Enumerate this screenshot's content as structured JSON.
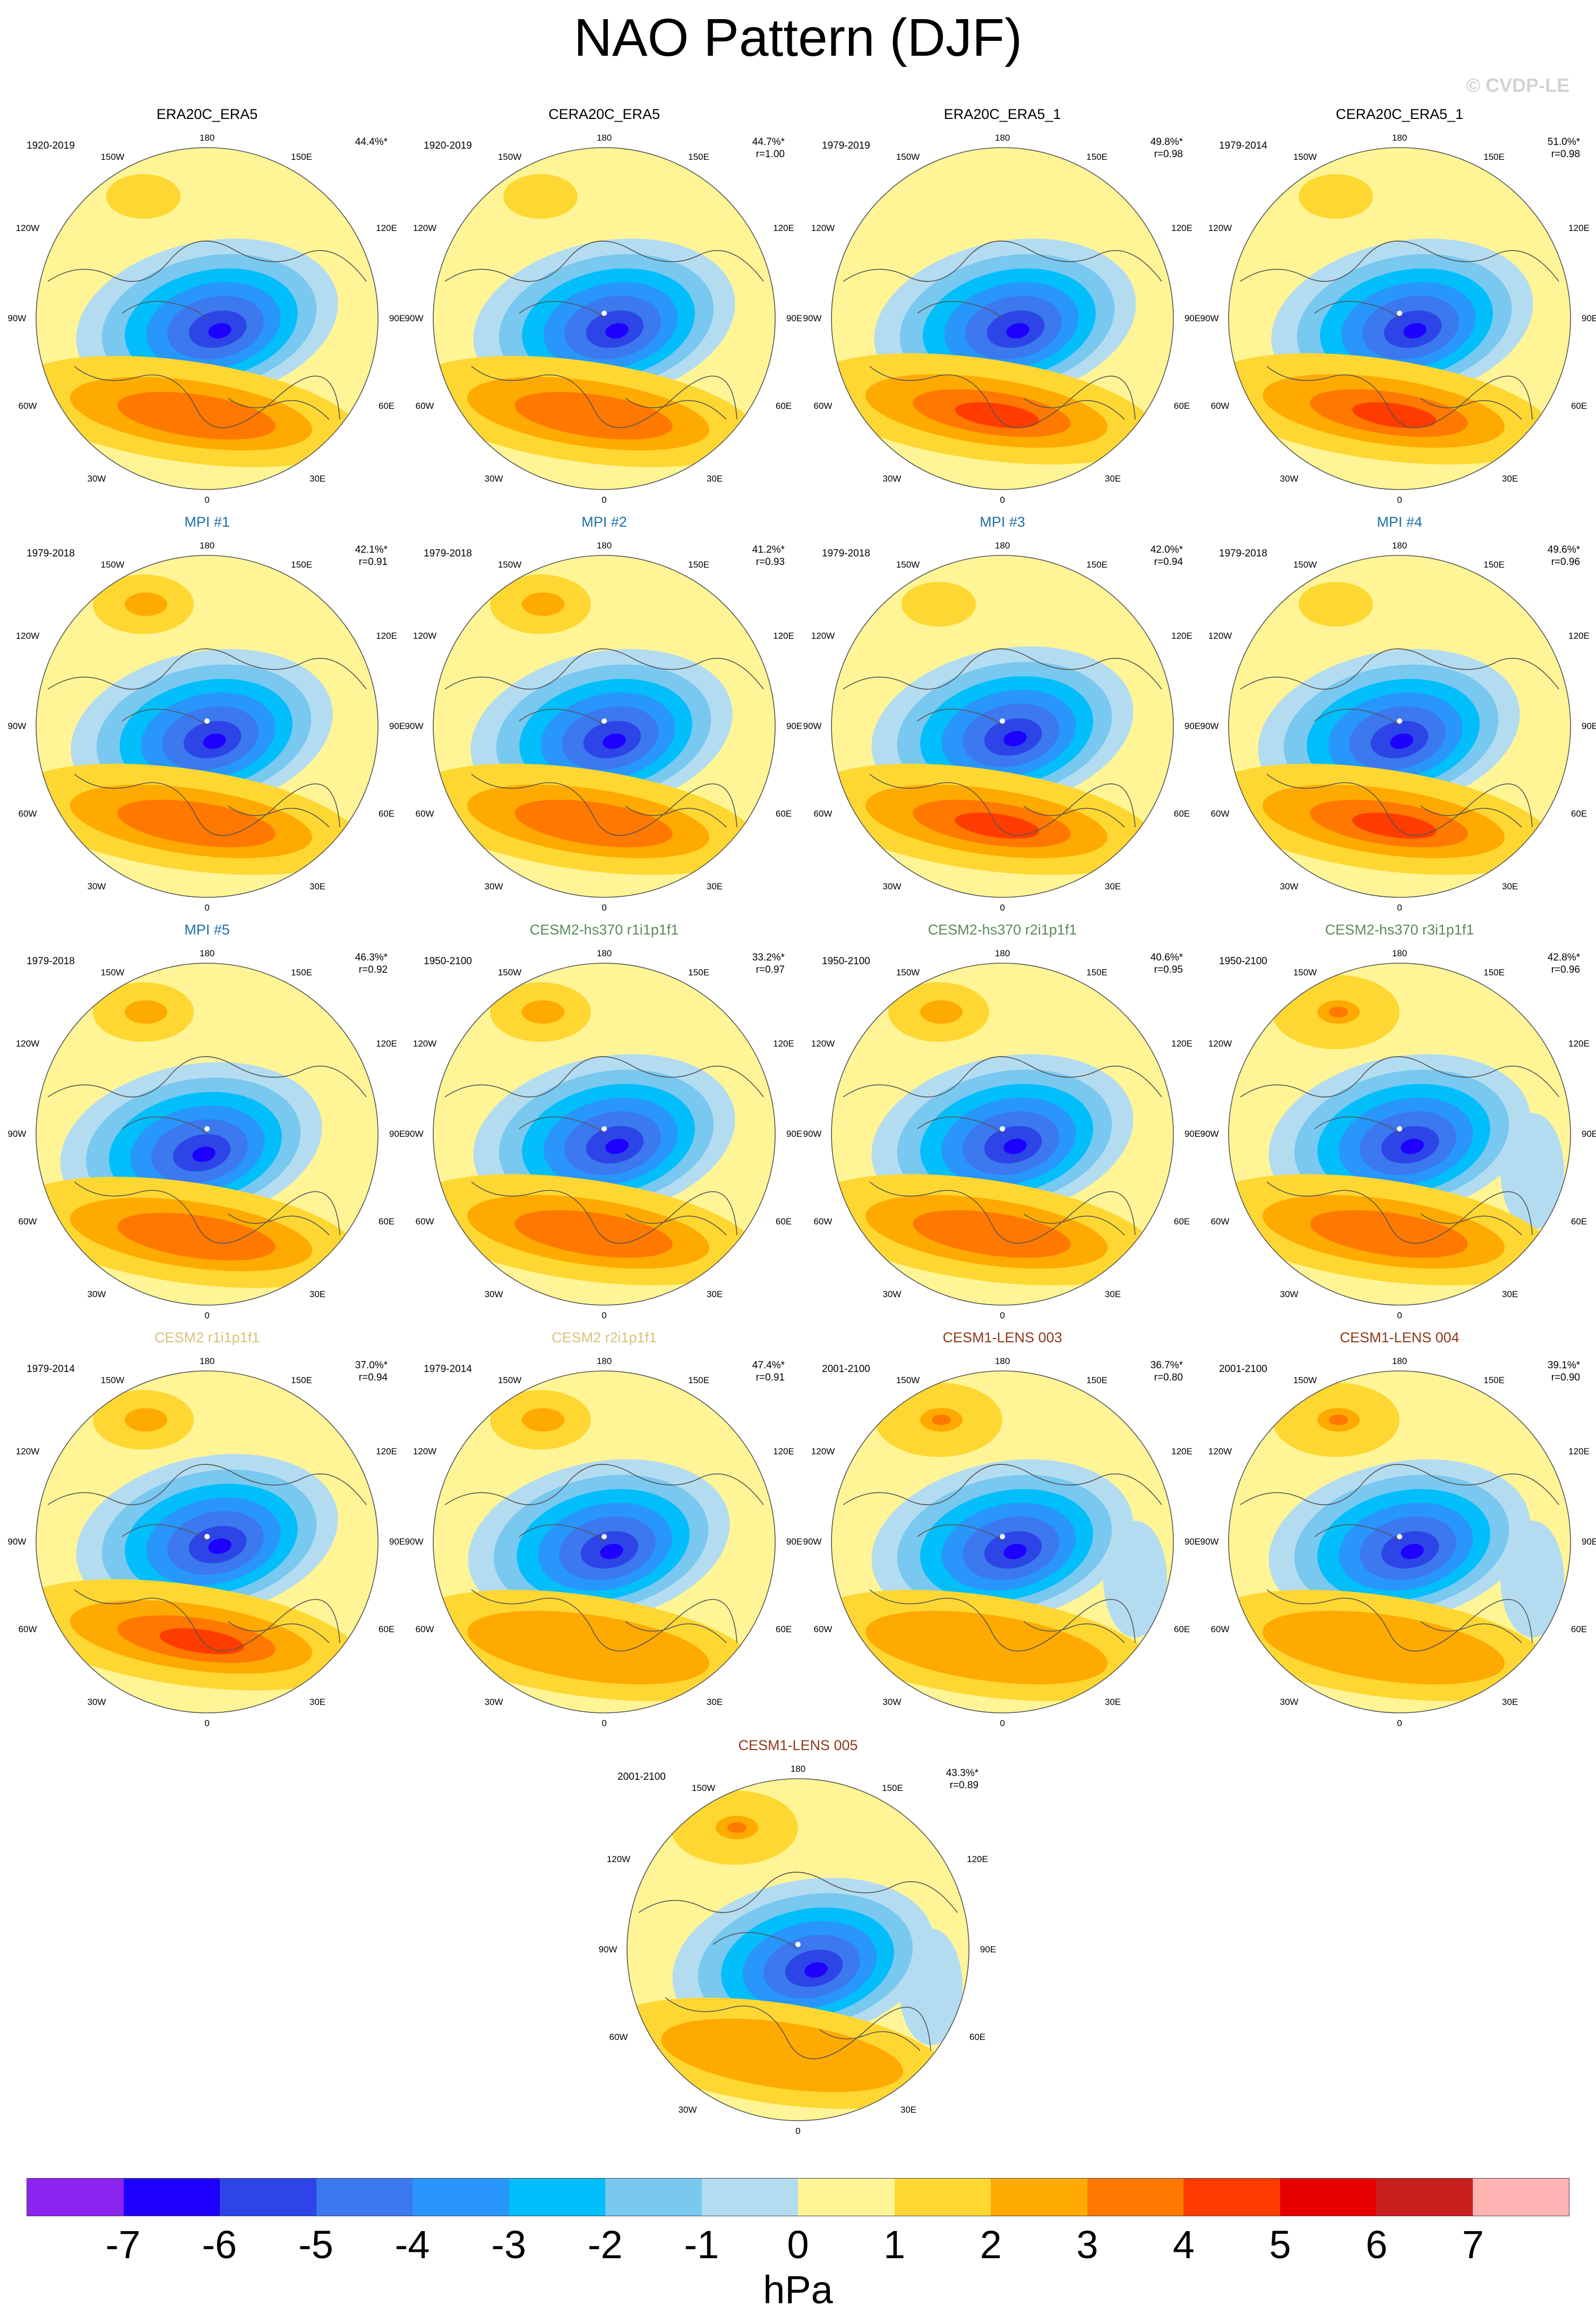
{
  "title": "NAO Pattern (DJF)",
  "copyright": "© CVDP-LE",
  "map_labels": {
    "top": "180",
    "bottom": "0",
    "left_upper": "120W",
    "left_mid": "90W",
    "left_lower": "60W",
    "right_upper": "120E",
    "right_mid": "90E",
    "right_lower": "60E",
    "top_left": "150W",
    "top_right": "150E",
    "bottom_left": "30W",
    "bottom_right": "30E"
  },
  "panels": [
    {
      "title": "ERA20C_ERA5",
      "title_color": "#000000",
      "period": "1920-2019",
      "pct": "44.4%*",
      "r": ""
    },
    {
      "title": "CERA20C_ERA5",
      "title_color": "#000000",
      "period": "1920-2019",
      "pct": "44.7%*",
      "r": "r=1.00"
    },
    {
      "title": "ERA20C_ERA5_1",
      "title_color": "#000000",
      "period": "1979-2019",
      "pct": "49.8%*",
      "r": "r=0.98"
    },
    {
      "title": "CERA20C_ERA5_1",
      "title_color": "#000000",
      "period": "1979-2014",
      "pct": "51.0%*",
      "r": "r=0.98"
    },
    {
      "title": "MPI #1",
      "title_color": "#1f6fa3",
      "period": "1979-2018",
      "pct": "42.1%*",
      "r": "r=0.91"
    },
    {
      "title": "MPI #2",
      "title_color": "#1f6fa3",
      "period": "1979-2018",
      "pct": "41.2%*",
      "r": "r=0.93"
    },
    {
      "title": "MPI #3",
      "title_color": "#1f6fa3",
      "period": "1979-2018",
      "pct": "42.0%*",
      "r": "r=0.94"
    },
    {
      "title": "MPI #4",
      "title_color": "#1f6fa3",
      "period": "1979-2018",
      "pct": "49.6%*",
      "r": "r=0.96"
    },
    {
      "title": "MPI #5",
      "title_color": "#1f6fa3",
      "period": "1979-2018",
      "pct": "46.3%*",
      "r": "r=0.92"
    },
    {
      "title": "CESM2-hs370 r1i1p1f1",
      "title_color": "#5a8a5a",
      "period": "1950-2100",
      "pct": "33.2%*",
      "r": "r=0.97"
    },
    {
      "title": "CESM2-hs370 r2i1p1f1",
      "title_color": "#5a8a5a",
      "period": "1950-2100",
      "pct": "40.6%*",
      "r": "r=0.95"
    },
    {
      "title": "CESM2-hs370 r3i1p1f1",
      "title_color": "#5a8a5a",
      "period": "1950-2100",
      "pct": "42.8%*",
      "r": "r=0.96"
    },
    {
      "title": "CESM2 r1i1p1f1",
      "title_color": "#d8c27a",
      "period": "1979-2014",
      "pct": "37.0%*",
      "r": "r=0.94"
    },
    {
      "title": "CESM2 r2i1p1f1",
      "title_color": "#d8c27a",
      "period": "1979-2014",
      "pct": "47.4%*",
      "r": "r=0.91"
    },
    {
      "title": "CESM1-LENS 003",
      "title_color": "#8b3a1a",
      "period": "2001-2100",
      "pct": "36.7%*",
      "r": "r=0.80"
    },
    {
      "title": "CESM1-LENS 004",
      "title_color": "#8b3a1a",
      "period": "2001-2100",
      "pct": "39.1%*",
      "r": "r=0.90"
    },
    {
      "title": "CESM1-LENS 005",
      "title_color": "#8b3a1a",
      "period": "2001-2100",
      "pct": "43.3%*",
      "r": "r=0.89"
    }
  ],
  "colorbar": {
    "colors": [
      "#8a24ee",
      "#1e00fe",
      "#2d45e6",
      "#3c78ee",
      "#2896fa",
      "#02befa",
      "#78c8f0",
      "#b4dcf0",
      "#fff596",
      "#ffd732",
      "#ffaa00",
      "#ff7800",
      "#ff3c00",
      "#e60000",
      "#c81e1e",
      "#ffb4b4"
    ],
    "ticks": [
      "-7",
      "-6",
      "-5",
      "-4",
      "-3",
      "-2",
      "-1",
      "0",
      "1",
      "2",
      "3",
      "4",
      "5",
      "6",
      "7"
    ],
    "units": "hPa"
  }
}
